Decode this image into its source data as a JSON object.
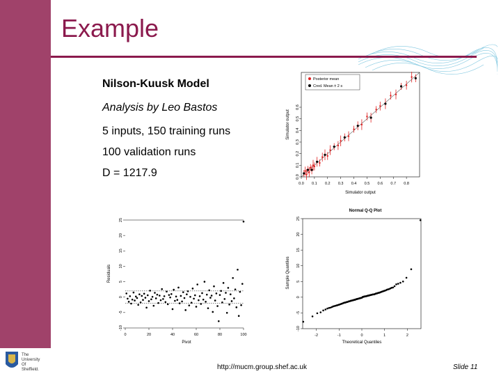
{
  "slide": {
    "title": "Example",
    "bullets": [
      "Nilson-Kuusk Model",
      "Analysis by Leo Bastos",
      "5 inputs, 150 training runs",
      "100 validation runs",
      "D = 1217.9"
    ],
    "footer_url": "http://mucm.group.shef.ac.uk",
    "slide_number": "Slide 11",
    "logo_text": [
      "The",
      "University",
      "Of",
      "Sheffield."
    ]
  },
  "colors": {
    "sidebar": "#a0426a",
    "title": "#8b1a4d",
    "posterior": "#e02020"
  },
  "chart_data": [
    {
      "type": "scatter",
      "xlabel": "Simulator output",
      "ylabel": "Simulator output",
      "xlim": [
        0,
        0.9
      ],
      "ylim": [
        0,
        0.9
      ],
      "xticks": [
        "0.0",
        "0.1",
        "0.2",
        "0.3",
        "0.4",
        "0.5",
        "0.6",
        "0.7",
        "0.8"
      ],
      "yticks": [
        "0.0",
        "0.1",
        "0.2",
        "0.3",
        "0.4",
        "0.5",
        "0.6"
      ],
      "legend": [
        "Posterior mean",
        "Cred. Mean ± 2 s"
      ],
      "legend_position": "top-left",
      "reference_line": [
        [
          0,
          0
        ],
        [
          0.9,
          0.9
        ]
      ],
      "points": [
        [
          0.02,
          0.03
        ],
        [
          0.03,
          0.05
        ],
        [
          0.04,
          0.02
        ],
        [
          0.05,
          0.06
        ],
        [
          0.06,
          0.04
        ],
        [
          0.07,
          0.08
        ],
        [
          0.08,
          0.06
        ],
        [
          0.09,
          0.1
        ],
        [
          0.1,
          0.09
        ],
        [
          0.12,
          0.13
        ],
        [
          0.14,
          0.12
        ],
        [
          0.16,
          0.17
        ],
        [
          0.18,
          0.19
        ],
        [
          0.2,
          0.18
        ],
        [
          0.22,
          0.23
        ],
        [
          0.25,
          0.26
        ],
        [
          0.28,
          0.27
        ],
        [
          0.3,
          0.31
        ],
        [
          0.33,
          0.34
        ],
        [
          0.36,
          0.35
        ],
        [
          0.4,
          0.41
        ],
        [
          0.43,
          0.44
        ],
        [
          0.46,
          0.45
        ],
        [
          0.5,
          0.52
        ],
        [
          0.53,
          0.51
        ],
        [
          0.57,
          0.58
        ],
        [
          0.6,
          0.61
        ],
        [
          0.64,
          0.63
        ],
        [
          0.68,
          0.7
        ],
        [
          0.72,
          0.71
        ],
        [
          0.76,
          0.78
        ],
        [
          0.8,
          0.79
        ],
        [
          0.84,
          0.86
        ],
        [
          0.87,
          0.85
        ]
      ]
    },
    {
      "type": "scatter",
      "xlabel": "Pivot",
      "ylabel": "Residuals",
      "xlim": [
        0,
        100
      ],
      "ylim": [
        -10,
        25
      ],
      "xticks": [
        "0",
        "20",
        "40",
        "60",
        "80",
        "100"
      ],
      "yticks": [
        "-10",
        "-5",
        "0",
        "5",
        "10",
        "15",
        "20",
        "25"
      ],
      "reference_lines_y": [
        -2,
        2
      ],
      "values": [
        1.2,
        -0.5,
        -1.5,
        0.3,
        -2.1,
        -0.8,
        1.5,
        -1.1,
        0.2,
        -0.3,
        -2.5,
        0.9,
        -1.7,
        0.4,
        -0.9,
        1.1,
        -0.2,
        -3.4,
        0.6,
        -1.3,
        2.1,
        -0.7,
        0.1,
        -2.8,
        1.4,
        -0.4,
        0.8,
        -1.9,
        0.5,
        -1.0,
        2.6,
        -0.6,
        0.3,
        -1.6,
        1.8,
        -2.3,
        0.7,
        -0.1,
        1.0,
        -3.9,
        2.4,
        -1.2,
        0.2,
        -0.9,
        3.1,
        -2.0,
        0.4,
        -1.4,
        1.6,
        -0.3,
        -4.2,
        0.9,
        1.9,
        -2.7,
        0.1,
        -1.8,
        2.8,
        -0.5,
        0.6,
        -3.1,
        4.1,
        -1.0,
        0.3,
        -2.2,
        1.3,
        -0.8,
        5.0,
        -1.5,
        0.8,
        -3.6,
        2.2,
        -0.2,
        0.5,
        -4.8,
        3.5,
        -1.1,
        1.2,
        -2.9,
        -7.8,
        0.7,
        2.0,
        -1.7,
        4.6,
        -0.6,
        1.4,
        -5.1,
        3.0,
        -2.4,
        0.9,
        -1.3,
        6.2,
        -0.4,
        2.5,
        -3.3,
        8.9,
        -6.1,
        1.7,
        -2.6,
        4.3,
        24.5
      ]
    },
    {
      "type": "scatter",
      "title": "Normal Q-Q Plot",
      "xlabel": "Theoretical Quantiles",
      "ylabel": "Sample Quantiles",
      "xlim": [
        -2.6,
        2.6
      ],
      "ylim": [
        -10,
        25
      ],
      "xticks": [
        "-2",
        "-1",
        "0",
        "1",
        "2"
      ],
      "yticks": [
        "-10",
        "-5",
        "0",
        "5",
        "10",
        "15",
        "20",
        "25"
      ],
      "qq_sample_sorted": true
    }
  ]
}
